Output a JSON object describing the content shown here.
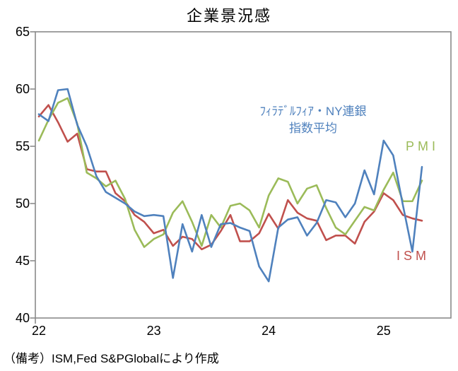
{
  "title": "企業景況感",
  "legend": {
    "fed_line1": "ﾌｨﾗﾃﾞﾙﾌｨｱ・NY連銀",
    "fed_line2": "指数平均",
    "pmi": "PMI",
    "ism": "ISM"
  },
  "footer_note": "（備考）ISM,Fed S&PGlobalにより作成",
  "colors": {
    "fed_ny": "#4F81BD",
    "pmi": "#9BBB59",
    "ism": "#C0504D",
    "axis": "#8A8A8A",
    "text": "#000000"
  },
  "chart_data": {
    "type": "line",
    "title": "企業景況感",
    "grid": false,
    "legend_position": "inline-labels",
    "x_axis": {
      "tick_labels": [
        "22",
        "23",
        "24",
        "25"
      ],
      "unit": "year, monthly data points"
    },
    "y_axis": {
      "ticks": [
        65,
        60,
        55,
        50,
        45,
        40
      ],
      "range": [
        40,
        65
      ]
    },
    "categories": [
      "22-01",
      "22-02",
      "22-03",
      "22-04",
      "22-05",
      "22-06",
      "22-07",
      "22-08",
      "22-09",
      "22-10",
      "22-11",
      "22-12",
      "23-01",
      "23-02",
      "23-03",
      "23-04",
      "23-05",
      "23-06",
      "23-07",
      "23-08",
      "23-09",
      "23-10",
      "23-11",
      "23-12",
      "24-01",
      "24-02",
      "24-03",
      "24-04",
      "24-05",
      "24-06",
      "24-07",
      "24-08",
      "24-09",
      "24-10",
      "24-11",
      "24-12",
      "25-01",
      "25-02",
      "25-03",
      "25-04",
      "25-05"
    ],
    "series": [
      {
        "id": "ism",
        "name": "ISM",
        "color": "#C0504D",
        "values": [
          57.6,
          58.6,
          57.1,
          55.4,
          56.1,
          53.0,
          52.8,
          52.8,
          50.9,
          50.2,
          49.0,
          48.4,
          47.4,
          47.7,
          46.3,
          47.1,
          46.9,
          46.0,
          46.4,
          47.6,
          49.0,
          46.7,
          46.7,
          47.4,
          49.1,
          47.8,
          50.3,
          49.2,
          48.7,
          48.5,
          46.8,
          47.2,
          47.2,
          46.5,
          48.4,
          49.3,
          50.9,
          50.3,
          49.0,
          48.7,
          48.5
        ]
      },
      {
        "id": "pmi",
        "name": "PMI",
        "color": "#9BBB59",
        "values": [
          55.5,
          57.3,
          58.8,
          59.2,
          57.0,
          52.7,
          52.2,
          51.5,
          52.0,
          50.4,
          47.7,
          46.2,
          46.9,
          47.3,
          49.2,
          50.2,
          48.4,
          46.3,
          49.0,
          47.9,
          49.8,
          50.0,
          49.4,
          47.9,
          50.7,
          52.2,
          51.9,
          50.0,
          51.3,
          51.6,
          49.6,
          47.9,
          47.3,
          48.5,
          49.7,
          49.4,
          51.2,
          52.7,
          50.2,
          50.2,
          52.0
        ]
      },
      {
        "id": "fed-ny-avg",
        "name": "ﾌｨﾗﾃﾞﾙﾌｨｱ・NY連銀指数平均",
        "color": "#4F81BD",
        "values": [
          57.8,
          57.2,
          59.9,
          60.0,
          56.9,
          55.0,
          52.4,
          51.0,
          50.5,
          50.0,
          49.3,
          48.9,
          49.0,
          48.9,
          43.5,
          48.2,
          45.8,
          49.0,
          46.2,
          48.2,
          48.3,
          47.9,
          47.6,
          44.5,
          43.2,
          47.9,
          48.6,
          48.8,
          47.2,
          48.3,
          50.3,
          50.1,
          48.8,
          50.0,
          52.9,
          50.8,
          55.5,
          54.2,
          49.9,
          45.8,
          53.2
        ]
      }
    ]
  }
}
